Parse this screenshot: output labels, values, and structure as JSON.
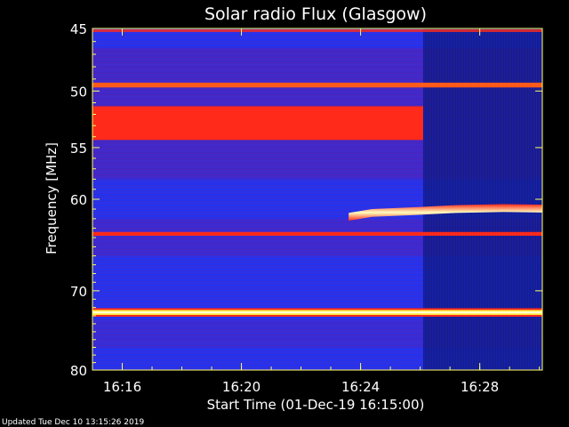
{
  "chart_data": {
    "type": "heatmap",
    "title": "Solar radio Flux (Glasgow)",
    "xlabel": "Start Time (01-Dec-19 16:15:00)",
    "ylabel": "Frequency [MHz]",
    "x_unit": "minutes after 16:15:00",
    "xlim": [
      0,
      15.1
    ],
    "ylim": [
      45,
      80
    ],
    "y_scale": "log",
    "y_inverted": true,
    "x_ticks": [
      {
        "value": 1,
        "label": "16:16"
      },
      {
        "value": 5,
        "label": "16:20"
      },
      {
        "value": 9,
        "label": "16:24"
      },
      {
        "value": 13,
        "label": "16:28"
      }
    ],
    "y_ticks": [
      {
        "value": 45,
        "label": "45"
      },
      {
        "value": 50,
        "label": "50"
      },
      {
        "value": 55,
        "label": "55"
      },
      {
        "value": 60,
        "label": "60"
      },
      {
        "value": 70,
        "label": "70"
      },
      {
        "value": 80,
        "label": "80"
      }
    ],
    "colors": {
      "background_level": "#2233ee",
      "dark_region": "#0c1670",
      "purple_band": "#5a1fa8",
      "red_band": "#ff2a1a",
      "yellow_band": "#ffee44",
      "white_core": "#ffffe0"
    },
    "dim_region": {
      "x_start": 11.1,
      "x_end": 15.1
    },
    "bands": [
      {
        "name": "band-51-54",
        "f_low": 51.3,
        "f_high": 54.3,
        "x_start": 0,
        "x_end": 11.1,
        "intensity": "strong",
        "color": "#ff2a1a"
      },
      {
        "name": "band-49-5",
        "f_low": 49.3,
        "f_high": 49.7,
        "x_start": 0,
        "x_end": 15.1,
        "intensity": "strong",
        "color": "#ff5a1a"
      },
      {
        "name": "band-63-6",
        "f_low": 63.4,
        "f_high": 63.8,
        "x_start": 0,
        "x_end": 15.1,
        "intensity": "strong",
        "color": "#ff2a1a"
      },
      {
        "name": "band-72-6",
        "f_low": 72.3,
        "f_high": 72.9,
        "x_start": 0,
        "x_end": 15.1,
        "intensity": "very_strong",
        "color": "#ffee44"
      },
      {
        "name": "burst-60-61",
        "f_low": 60.8,
        "f_high": 61.6,
        "x_start": 8.6,
        "x_end": 15.1,
        "intensity": "very_strong",
        "color": "#ffee44"
      }
    ]
  },
  "footer": {
    "updated": "Updated Tue Dec 10 13:15:26 2019"
  }
}
